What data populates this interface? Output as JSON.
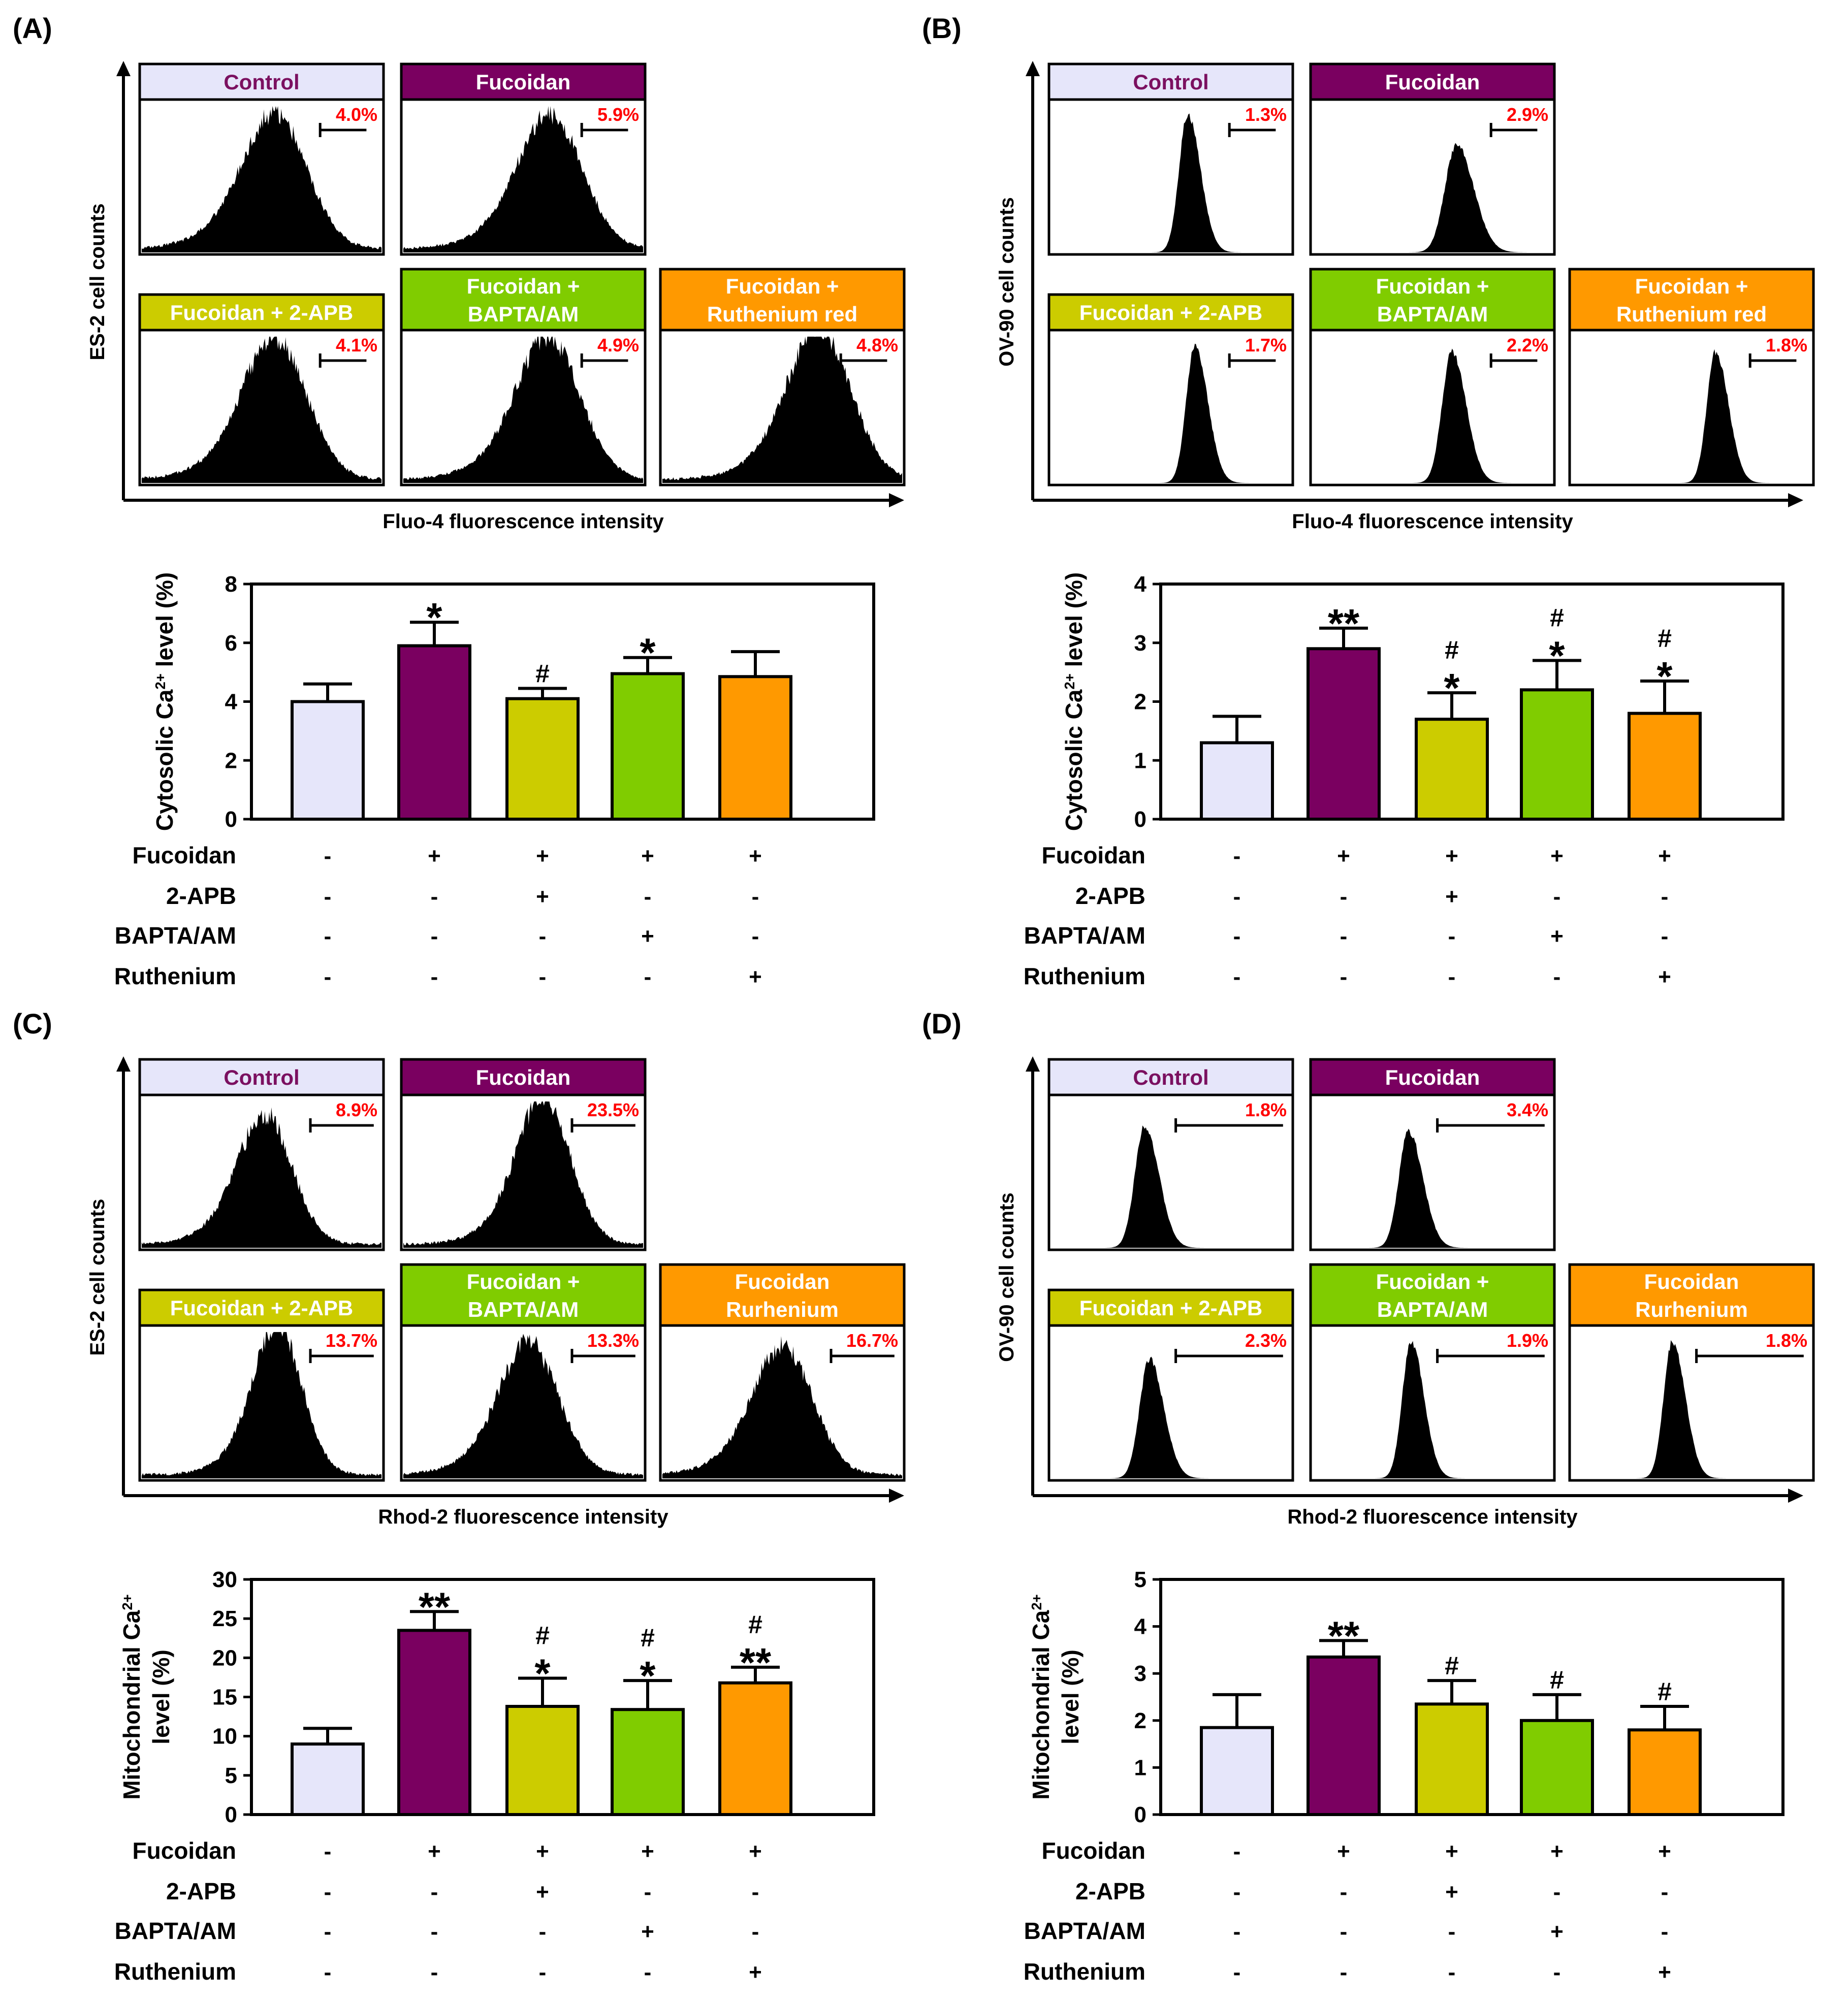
{
  "colors": {
    "control": "#e6e6fa",
    "control_text": "#7b1060",
    "fucoidan": "#7a0060",
    "apb": "#cccc00",
    "bapta": "#80cc00",
    "ruthenium": "#ff9900",
    "white": "#ffffff",
    "black": "#000000",
    "pct": "#ff0000"
  },
  "treatment_rows": {
    "labels": [
      "Fucoidan",
      "2-APB",
      "BAPTA/AM",
      "Ruthenium"
    ],
    "signs": [
      [
        "-",
        "+",
        "+",
        "+",
        "+"
      ],
      [
        "-",
        "-",
        "+",
        "-",
        "-"
      ],
      [
        "-",
        "-",
        "-",
        "+",
        "-"
      ],
      [
        "-",
        "-",
        "-",
        "-",
        "+"
      ]
    ]
  },
  "panels": [
    {
      "letter": "(A)",
      "cell_axis": "ES-2 cell counts",
      "fluor_axis": "Fluo-4 fluorescence intensity",
      "histograms": [
        {
          "title": [
            "Control"
          ],
          "pct": "4.0%",
          "shape": "broad",
          "peak": 0.56,
          "height": 0.82,
          "width": 0.13,
          "gate": [
            0.74,
            0.93
          ]
        },
        {
          "title": [
            "Fucoidan"
          ],
          "pct": "5.9%",
          "shape": "broad",
          "peak": 0.62,
          "height": 0.82,
          "width": 0.13,
          "gate": [
            0.74,
            0.93
          ]
        },
        {
          "title": [
            "Fucoidan + 2-APB"
          ],
          "pct": "4.1%",
          "shape": "broad",
          "peak": 0.56,
          "height": 0.86,
          "width": 0.13,
          "gate": [
            0.74,
            0.93
          ]
        },
        {
          "title": [
            "Fucoidan +",
            "BAPTA/AM"
          ],
          "pct": "4.9%",
          "shape": "broad",
          "peak": 0.61,
          "height": 0.86,
          "width": 0.13,
          "gate": [
            0.74,
            0.93
          ]
        },
        {
          "title": [
            "Fucoidan +",
            "Ruthenium red"
          ],
          "pct": "4.8%",
          "shape": "broad",
          "peak": 0.66,
          "height": 0.92,
          "width": 0.13,
          "gate": [
            0.74,
            0.93
          ]
        }
      ],
      "bar_chart": {
        "ylabel": [
          "Cytosolic Ca2+ level (%)"
        ],
        "ymax": 8,
        "ticks": [
          0,
          2,
          4,
          6,
          8
        ],
        "values": [
          4.0,
          5.9,
          4.1,
          4.95,
          4.85
        ],
        "errors": [
          0.6,
          0.8,
          0.35,
          0.55,
          0.85
        ],
        "marks": [
          [],
          [
            "*"
          ],
          [
            "#"
          ],
          [
            "*"
          ],
          []
        ]
      }
    },
    {
      "letter": "(B)",
      "cell_axis": "OV-90 cell counts",
      "fluor_axis": "Fluo-4 fluorescence intensity",
      "histograms": [
        {
          "title": [
            "Control"
          ],
          "pct": "1.3%",
          "shape": "narrow",
          "peak": 0.57,
          "height": 0.92,
          "width": 0.045,
          "gate": [
            0.74,
            0.93
          ]
        },
        {
          "title": [
            "Fucoidan"
          ],
          "pct": "2.9%",
          "shape": "narrow",
          "peak": 0.6,
          "height": 0.72,
          "width": 0.06,
          "gate": [
            0.74,
            0.93
          ]
        },
        {
          "title": [
            "Fucoidan + 2-APB"
          ],
          "pct": "1.7%",
          "shape": "narrow",
          "peak": 0.6,
          "height": 0.92,
          "width": 0.045,
          "gate": [
            0.74,
            0.93
          ]
        },
        {
          "title": [
            "Fucoidan +",
            "BAPTA/AM"
          ],
          "pct": "2.2%",
          "shape": "narrow",
          "peak": 0.58,
          "height": 0.88,
          "width": 0.05,
          "gate": [
            0.74,
            0.93
          ]
        },
        {
          "title": [
            "Fucoidan +",
            "Ruthenium red"
          ],
          "pct": "1.8%",
          "shape": "narrow",
          "peak": 0.6,
          "height": 0.88,
          "width": 0.045,
          "gate": [
            0.74,
            0.93
          ]
        }
      ],
      "bar_chart": {
        "ylabel": [
          "Cytosolic Ca2+ level (%)"
        ],
        "ymax": 4,
        "ticks": [
          0,
          1,
          2,
          3,
          4
        ],
        "values": [
          1.3,
          2.9,
          1.7,
          2.2,
          1.8
        ],
        "errors": [
          0.45,
          0.35,
          0.45,
          0.5,
          0.55
        ],
        "marks": [
          [],
          [
            "**"
          ],
          [
            "#",
            "*"
          ],
          [
            "#",
            "*"
          ],
          [
            "#",
            "*"
          ]
        ]
      }
    },
    {
      "letter": "(C)",
      "cell_axis": "ES-2 cell counts",
      "fluor_axis": "Rhod-2 fluorescence intensity",
      "histograms": [
        {
          "title": [
            "Control"
          ],
          "pct": "8.9%",
          "shape": "broad",
          "peak": 0.52,
          "height": 0.78,
          "width": 0.11,
          "gate": [
            0.7,
            0.96
          ]
        },
        {
          "title": [
            "Fucoidan"
          ],
          "pct": "23.5%",
          "shape": "broad",
          "peak": 0.59,
          "height": 0.9,
          "width": 0.11,
          "gate": [
            0.7,
            0.96
          ]
        },
        {
          "title": [
            "Fucoidan + 2-APB"
          ],
          "pct": "13.7%",
          "shape": "broad",
          "peak": 0.57,
          "height": 0.92,
          "width": 0.1,
          "gate": [
            0.7,
            0.96
          ]
        },
        {
          "title": [
            "Fucoidan +",
            "BAPTA/AM"
          ],
          "pct": "13.3%",
          "shape": "broad",
          "peak": 0.53,
          "height": 0.8,
          "width": 0.12,
          "gate": [
            0.7,
            0.96
          ]
        },
        {
          "title": [
            "Fucoidan",
            "Rurhenium"
          ],
          "pct": "16.7%",
          "shape": "broad",
          "peak": 0.51,
          "height": 0.78,
          "width": 0.12,
          "gate": [
            0.7,
            0.96
          ]
        }
      ],
      "bar_chart": {
        "ylabel": [
          "Mitochondrial Ca2+",
          "level (%)"
        ],
        "ymax": 30,
        "ticks": [
          0,
          5,
          10,
          15,
          20,
          25,
          30
        ],
        "values": [
          9.0,
          23.5,
          13.8,
          13.4,
          16.8
        ],
        "errors": [
          2.0,
          2.4,
          3.6,
          3.7,
          2.0
        ],
        "marks": [
          [],
          [
            "**"
          ],
          [
            "#",
            "*"
          ],
          [
            "#",
            "*"
          ],
          [
            "#",
            "**"
          ]
        ]
      }
    },
    {
      "letter": "(D)",
      "cell_axis": "OV-90 cell counts",
      "fluor_axis": "Rhod-2 fluorescence intensity",
      "histograms": [
        {
          "title": [
            "Control"
          ],
          "pct": "1.8%",
          "shape": "narrow",
          "peak": 0.39,
          "height": 0.82,
          "width": 0.05,
          "gate": [
            0.52,
            0.96
          ]
        },
        {
          "title": [
            "Fucoidan"
          ],
          "pct": "3.4%",
          "shape": "narrow",
          "peak": 0.4,
          "height": 0.78,
          "width": 0.05,
          "gate": [
            0.52,
            0.96
          ]
        },
        {
          "title": [
            "Fucoidan + 2-APB"
          ],
          "pct": "2.3%",
          "shape": "narrow",
          "peak": 0.41,
          "height": 0.8,
          "width": 0.05,
          "gate": [
            0.52,
            0.96
          ]
        },
        {
          "title": [
            "Fucoidan +",
            "BAPTA/AM"
          ],
          "pct": "1.9%",
          "shape": "narrow",
          "peak": 0.41,
          "height": 0.92,
          "width": 0.045,
          "gate": [
            0.52,
            0.96
          ]
        },
        {
          "title": [
            "Fucoidan",
            "Rurhenium"
          ],
          "pct": "1.8%",
          "shape": "narrow",
          "peak": 0.42,
          "height": 0.92,
          "width": 0.045,
          "gate": [
            0.52,
            0.96
          ]
        }
      ],
      "bar_chart": {
        "ylabel": [
          "Mitochondrial Ca2+",
          "level (%)"
        ],
        "ymax": 5,
        "ticks": [
          0,
          1,
          2,
          3,
          4,
          5
        ],
        "values": [
          1.85,
          3.35,
          2.35,
          2.0,
          1.8
        ],
        "errors": [
          0.7,
          0.35,
          0.5,
          0.55,
          0.5
        ],
        "marks": [
          [],
          [
            "**"
          ],
          [
            "#"
          ],
          [
            "#"
          ],
          [
            "#"
          ]
        ]
      }
    }
  ],
  "chart_data": [
    {
      "type": "bar",
      "title": "(A) Cytosolic Ca2+ level (%) - ES-2",
      "categories": [
        "Control",
        "Fucoidan",
        "Fucoidan + 2-APB",
        "Fucoidan + BAPTA/AM",
        "Fucoidan + Ruthenium red"
      ],
      "values": [
        4.0,
        5.9,
        4.1,
        4.95,
        4.85
      ],
      "errors": [
        0.6,
        0.8,
        0.35,
        0.55,
        0.85
      ],
      "ylabel": "Cytosolic Ca2+ level (%)",
      "ylim": [
        0,
        8
      ]
    },
    {
      "type": "bar",
      "title": "(B) Cytosolic Ca2+ level (%) - OV-90",
      "categories": [
        "Control",
        "Fucoidan",
        "Fucoidan + 2-APB",
        "Fucoidan + BAPTA/AM",
        "Fucoidan + Ruthenium red"
      ],
      "values": [
        1.3,
        2.9,
        1.7,
        2.2,
        1.8
      ],
      "errors": [
        0.45,
        0.35,
        0.45,
        0.5,
        0.55
      ],
      "ylabel": "Cytosolic Ca2+ level (%)",
      "ylim": [
        0,
        4
      ]
    },
    {
      "type": "bar",
      "title": "(C) Mitochondrial Ca2+ level (%) - ES-2",
      "categories": [
        "Control",
        "Fucoidan",
        "Fucoidan + 2-APB",
        "Fucoidan + BAPTA/AM",
        "Fucoidan Rurhenium"
      ],
      "values": [
        9.0,
        23.5,
        13.8,
        13.4,
        16.8
      ],
      "errors": [
        2.0,
        2.4,
        3.6,
        3.7,
        2.0
      ],
      "ylabel": "Mitochondrial Ca2+ level (%)",
      "ylim": [
        0,
        30
      ]
    },
    {
      "type": "bar",
      "title": "(D) Mitochondrial Ca2+ level (%) - OV-90",
      "categories": [
        "Control",
        "Fucoidan",
        "Fucoidan + 2-APB",
        "Fucoidan + BAPTA/AM",
        "Fucoidan Rurhenium"
      ],
      "values": [
        1.85,
        3.35,
        2.35,
        2.0,
        1.8
      ],
      "errors": [
        0.7,
        0.35,
        0.5,
        0.55,
        0.5
      ],
      "ylabel": "Mitochondrial Ca2+ level (%)",
      "ylim": [
        0,
        5
      ]
    }
  ]
}
